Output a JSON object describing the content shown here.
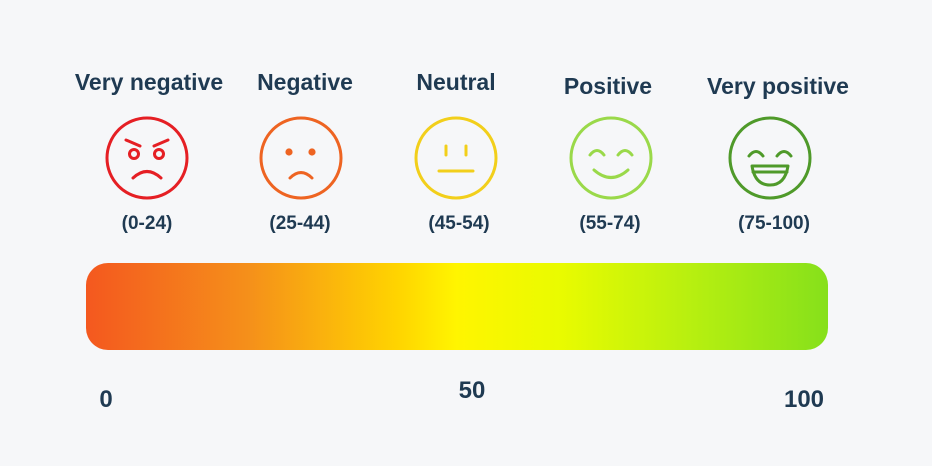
{
  "categories": [
    {
      "label": "Very negative",
      "range": "(0-24)",
      "color": "#e51f24",
      "icon": "angry-face-icon"
    },
    {
      "label": "Negative",
      "range": "(25-44)",
      "color": "#ee6422",
      "icon": "sad-face-icon"
    },
    {
      "label": "Neutral",
      "range": "(45-54)",
      "color": "#f2cf1b",
      "icon": "neutral-face-icon"
    },
    {
      "label": "Positive",
      "range": "(55-74)",
      "color": "#9ad94a",
      "icon": "smiling-face-icon"
    },
    {
      "label": "Very positive",
      "range": "(75-100)",
      "color": "#4f9a2a",
      "icon": "grinning-face-icon"
    }
  ],
  "scale": {
    "min": "0",
    "mid": "50",
    "max": "100"
  }
}
